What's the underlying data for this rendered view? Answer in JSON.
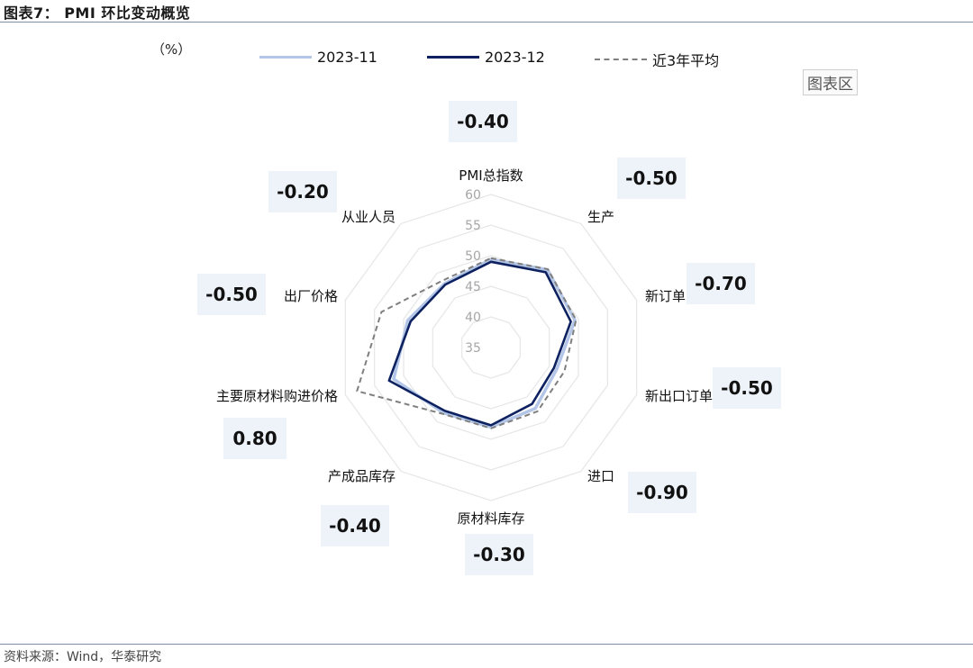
{
  "header": {
    "title": "图表7： PMI 环比变动概览"
  },
  "footer": {
    "source": "资料来源：Wind，华泰研究"
  },
  "watermark": "图表区",
  "colors": {
    "s2023_11": "#b4c6e7",
    "s2023_12": "#0d2160",
    "avg3y": "#7f7f7f",
    "box_bg": "#eef3f9",
    "grid": "#e6e6e6"
  },
  "chart_data": {
    "type": "radar",
    "unit_label": "（%）",
    "categories": [
      "PMI总指数",
      "生产",
      "新订单",
      "新出口订单",
      "进口",
      "原材料库存",
      "产成品库存",
      "主要原材料购进价格",
      "出厂价格",
      "从业人员"
    ],
    "radial_ticks": [
      "35",
      "40",
      "45",
      "50",
      "55",
      "60"
    ],
    "rlim": [
      35,
      60
    ],
    "grid": true,
    "legend_position": "top",
    "series": [
      {
        "name": "2023-11",
        "style": "solid-light",
        "values": [
          49.4,
          50.7,
          49.4,
          46.3,
          47.3,
          48.0,
          48.2,
          51.7,
          49.3,
          47.9
        ]
      },
      {
        "name": "2023-12",
        "style": "solid-dark",
        "values": [
          49.0,
          50.2,
          48.7,
          45.8,
          46.4,
          47.7,
          47.8,
          52.5,
          48.8,
          47.7
        ]
      },
      {
        "name": "近3年平均",
        "style": "dashed",
        "values": [
          49.6,
          50.8,
          49.6,
          47.6,
          47.9,
          48.2,
          48.4,
          58.0,
          53.8,
          48.5
        ]
      }
    ],
    "change_labels": [
      "-0.40",
      "-0.50",
      "-0.70",
      "-0.50",
      "-0.90",
      "-0.30",
      "-0.40",
      "0.80",
      "-0.50",
      "-0.20"
    ]
  }
}
